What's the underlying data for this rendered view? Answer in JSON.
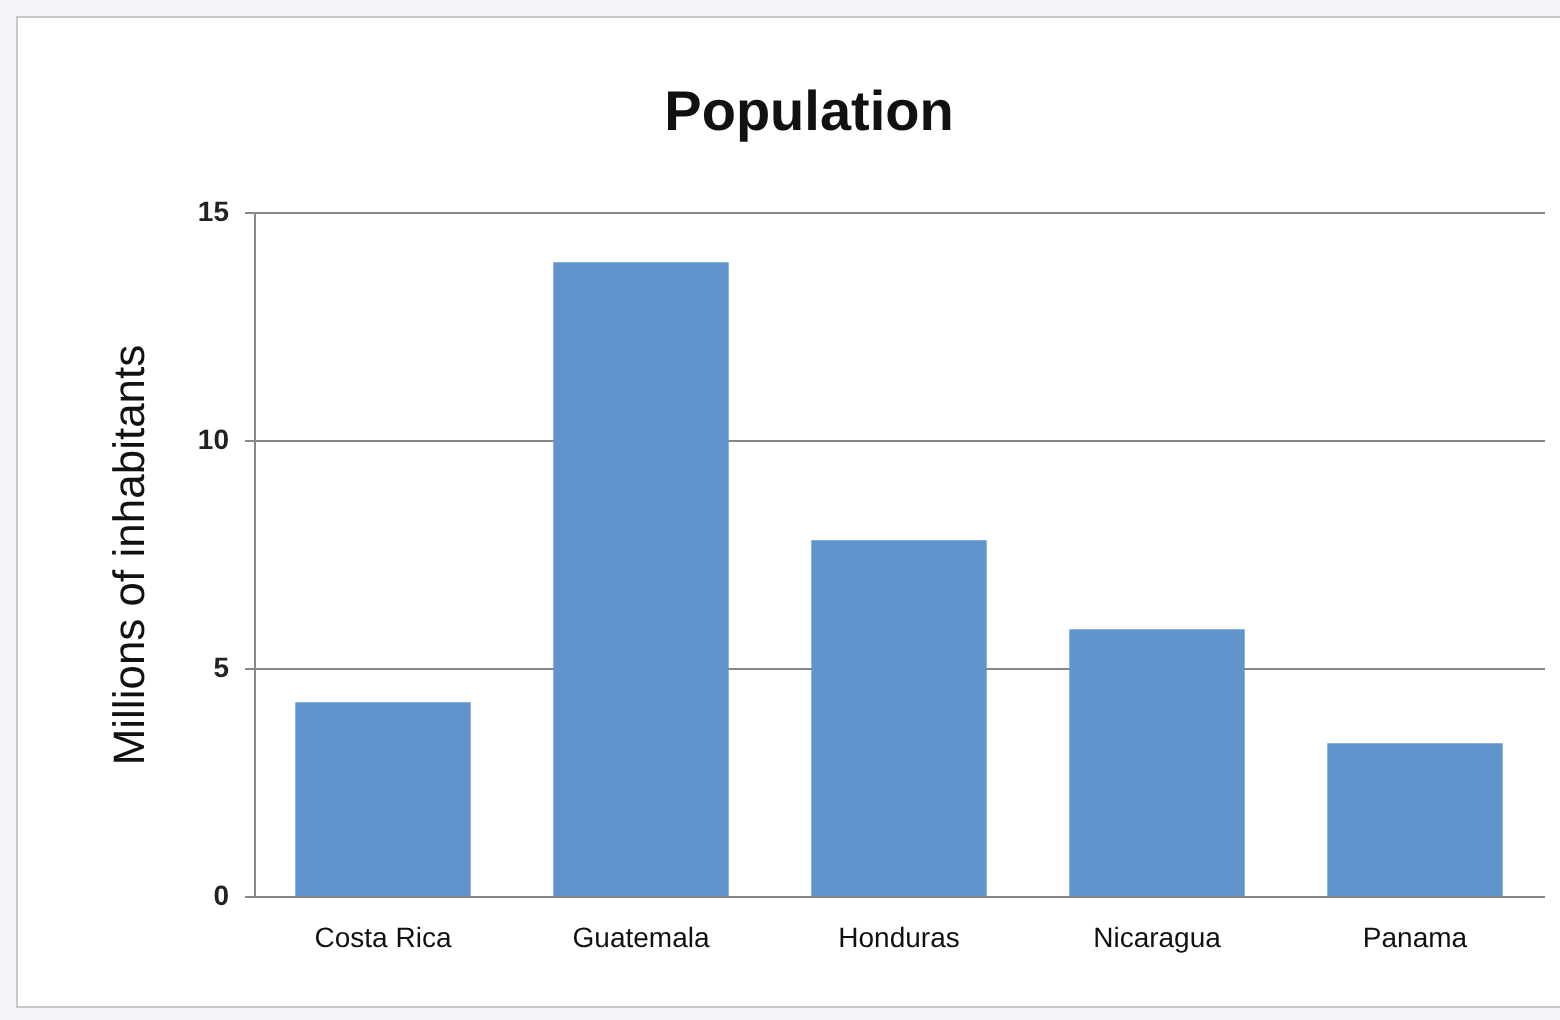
{
  "chart_data": {
    "type": "bar",
    "title": "Population",
    "ylabel": "Millions of inhabitants",
    "categories": [
      "Costa Rica",
      "Guatemala",
      "Honduras",
      "Nicaragua",
      "Panama"
    ],
    "values": [
      4.25,
      13.9,
      7.8,
      5.85,
      3.35
    ],
    "color": "#6094cc",
    "ylim": [
      0,
      15
    ],
    "yticks": [
      0,
      5,
      10,
      15
    ],
    "grid": "y"
  }
}
